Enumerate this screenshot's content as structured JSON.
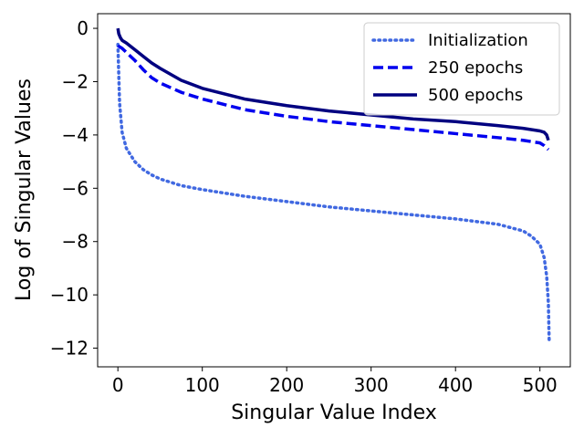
{
  "chart_data": {
    "type": "line",
    "title": "",
    "xlabel": "Singular Value Index",
    "ylabel": "Log of Singular Values",
    "xlim": [
      -24,
      536
    ],
    "ylim": [
      -12.7,
      0.55
    ],
    "xticks": [
      0,
      100,
      200,
      300,
      400,
      500
    ],
    "xtick_labels": [
      "0",
      "100",
      "200",
      "300",
      "400",
      "500"
    ],
    "yticks": [
      0,
      -2,
      -4,
      -6,
      -8,
      -10,
      -12
    ],
    "ytick_labels": [
      "0",
      "−2",
      "−4",
      "−6",
      "−8",
      "−10",
      "−12"
    ],
    "grid": false,
    "legend_position": "top-right",
    "series": [
      {
        "name": "Initialization",
        "style": "dotted",
        "color": "#4169e1",
        "x": [
          0,
          2,
          5,
          10,
          20,
          30,
          40,
          50,
          75,
          100,
          150,
          200,
          250,
          300,
          350,
          400,
          450,
          480,
          490,
          500,
          505,
          508,
          510,
          511
        ],
        "y": [
          -0.6,
          -2.8,
          -3.9,
          -4.5,
          -5.0,
          -5.3,
          -5.5,
          -5.65,
          -5.9,
          -6.05,
          -6.3,
          -6.5,
          -6.7,
          -6.85,
          -7.0,
          -7.15,
          -7.35,
          -7.6,
          -7.8,
          -8.1,
          -8.6,
          -9.3,
          -10.3,
          -11.8
        ]
      },
      {
        "name": "250 epochs",
        "style": "dashed",
        "color": "#0000ee",
        "x": [
          0,
          5,
          10,
          20,
          30,
          40,
          50,
          75,
          100,
          150,
          200,
          250,
          300,
          350,
          400,
          450,
          480,
          500,
          505,
          510
        ],
        "y": [
          -0.65,
          -0.75,
          -0.9,
          -1.2,
          -1.55,
          -1.85,
          -2.05,
          -2.4,
          -2.65,
          -3.05,
          -3.3,
          -3.5,
          -3.65,
          -3.8,
          -3.95,
          -4.1,
          -4.2,
          -4.3,
          -4.4,
          -4.55
        ]
      },
      {
        "name": "500 epochs",
        "style": "solid",
        "color": "#000080",
        "x": [
          0,
          1,
          3,
          5,
          10,
          20,
          30,
          40,
          50,
          75,
          100,
          150,
          200,
          250,
          300,
          350,
          400,
          450,
          480,
          500,
          505,
          508,
          510
        ],
        "y": [
          0.0,
          -0.2,
          -0.35,
          -0.45,
          -0.55,
          -0.8,
          -1.05,
          -1.3,
          -1.5,
          -1.95,
          -2.25,
          -2.65,
          -2.9,
          -3.1,
          -3.25,
          -3.4,
          -3.5,
          -3.65,
          -3.75,
          -3.85,
          -3.9,
          -4.0,
          -4.2
        ]
      }
    ]
  }
}
